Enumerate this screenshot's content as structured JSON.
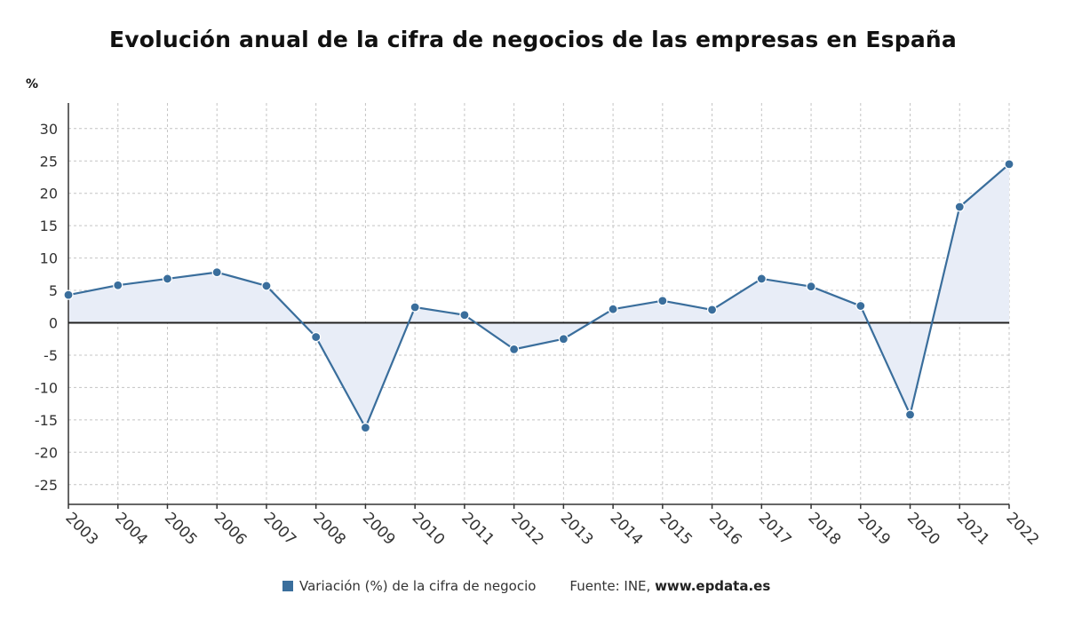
{
  "chart_data": {
    "type": "line",
    "title": "Evolución anual de la cifra de negocios de las empresas en España",
    "unit_label": "%",
    "categories": [
      "2003",
      "2004",
      "2005",
      "2006",
      "2007",
      "2008",
      "2009",
      "2010",
      "2011",
      "2012",
      "2013",
      "2014",
      "2015",
      "2016",
      "2017",
      "2018",
      "2019",
      "2020",
      "2021",
      "2022"
    ],
    "series": [
      {
        "name": "Variación (%) de la cifra de negocio",
        "values": [
          4.3,
          5.8,
          6.8,
          7.8,
          5.7,
          -2.2,
          -16.2,
          2.4,
          1.2,
          -4.1,
          -2.5,
          2.1,
          3.4,
          2.0,
          6.8,
          5.6,
          2.6,
          -14.2,
          17.9,
          24.5
        ],
        "color": "#3a6e9c",
        "fill_color": "#e8edf7"
      }
    ],
    "yticks": [
      30,
      25,
      20,
      15,
      10,
      5,
      0,
      -5,
      -10,
      -15,
      -20,
      -25
    ],
    "ylim": [
      -28,
      34
    ],
    "grid": true,
    "legend_position": "bottom"
  },
  "source": {
    "prefix": "Fuente: INE,",
    "site": "www.epdata.es"
  }
}
